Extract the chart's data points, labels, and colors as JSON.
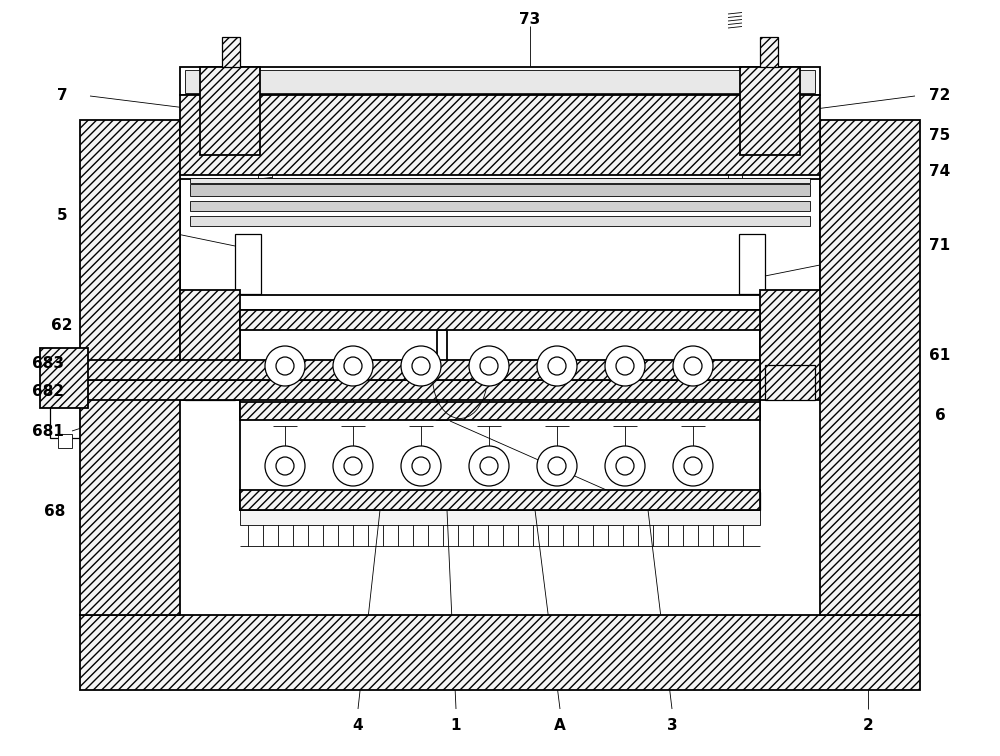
{
  "bg_color": "#ffffff",
  "lc": "#000000",
  "lc_gray": "#888888",
  "hatch_fc": "#f5f5f5",
  "fig_w": 10.0,
  "fig_h": 7.56,
  "dpi": 100,
  "lw_main": 1.3,
  "lw_med": 0.9,
  "lw_thin": 0.6,
  "hatch_dense": "////",
  "hatch_sparse": "//",
  "label_fs": 11,
  "label_fw": "bold"
}
